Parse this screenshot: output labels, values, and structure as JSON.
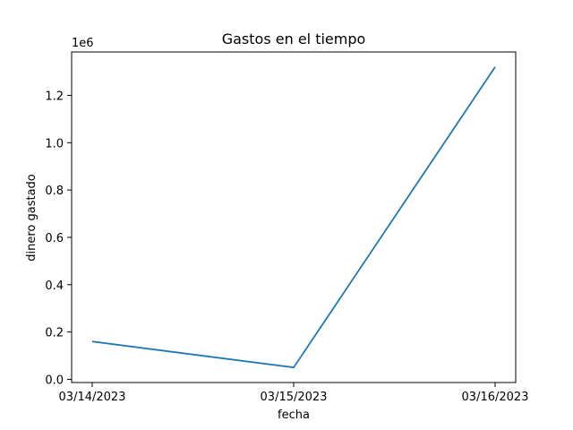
{
  "chart_data": {
    "type": "line",
    "title": "Gastos en el tiempo",
    "xlabel": "fecha",
    "ylabel": "dinero gastado",
    "y_offset_label": "1e6",
    "x": [
      "03/14/2023",
      "03/15/2023",
      "03/16/2023"
    ],
    "series": [
      {
        "values": [
          160000,
          50000,
          1320000
        ],
        "color": "#1f77b4"
      }
    ],
    "yticks": [
      0.0,
      200000,
      400000,
      600000,
      800000,
      1000000,
      1200000
    ],
    "ytick_labels": [
      "0.0",
      "0.2",
      "0.4",
      "0.6",
      "0.8",
      "1.0",
      "1.2"
    ],
    "ylim": [
      -13500,
      1383500
    ],
    "grid": false,
    "legend": "none"
  }
}
